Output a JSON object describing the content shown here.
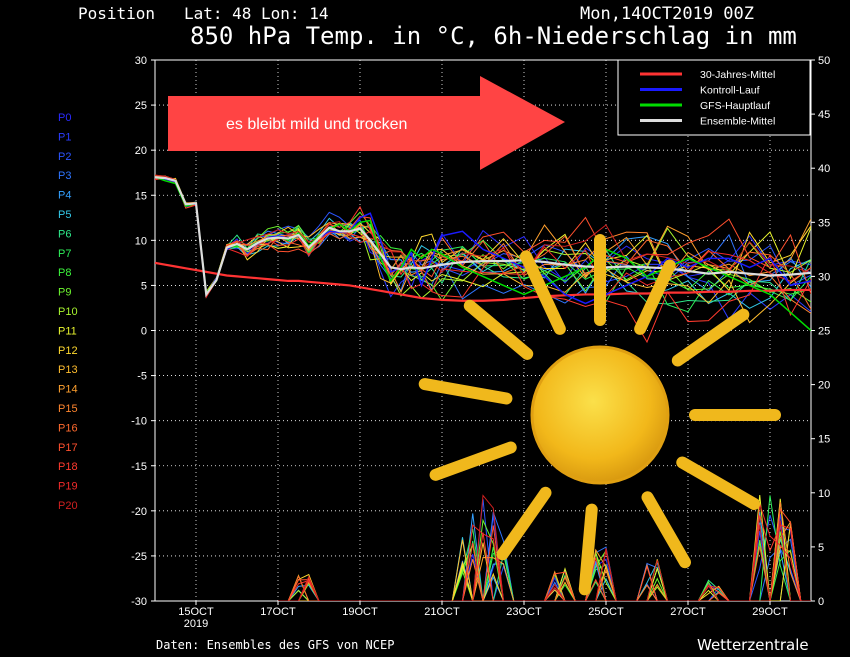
{
  "header": {
    "position": "Position   Lat: 48 Lon: 14",
    "date": "Mon,14OCT2019 00Z",
    "title": "850 hPa Temp. in °C, 6h-Niederschlag in mm"
  },
  "footer": {
    "source": "Daten: Ensembles des GFS von NCEP",
    "brand": "Wetterzentrale"
  },
  "annotation": {
    "arrow_text": "es bleibt mild und trocken",
    "arrow_color": "#ff4444",
    "decoration": "sun-icon"
  },
  "members": [
    {
      "label": "P0",
      "color": "#2b2bff"
    },
    {
      "label": "P1",
      "color": "#2b3cff"
    },
    {
      "label": "P2",
      "color": "#2c55ff"
    },
    {
      "label": "P3",
      "color": "#2f75ff"
    },
    {
      "label": "P4",
      "color": "#33a0ff"
    },
    {
      "label": "P5",
      "color": "#33c8e8"
    },
    {
      "label": "P6",
      "color": "#2ee88a"
    },
    {
      "label": "P7",
      "color": "#2ef05a"
    },
    {
      "label": "P8",
      "color": "#3cf53c"
    },
    {
      "label": "P9",
      "color": "#6cf52e"
    },
    {
      "label": "P10",
      "color": "#a8f52e"
    },
    {
      "label": "P11",
      "color": "#e8f52e"
    },
    {
      "label": "P12",
      "color": "#ffd92e"
    },
    {
      "label": "P13",
      "color": "#ffbd2e"
    },
    {
      "label": "P14",
      "color": "#ffa02e"
    },
    {
      "label": "P15",
      "color": "#ff852e"
    },
    {
      "label": "P16",
      "color": "#ff6a2e"
    },
    {
      "label": "P17",
      "color": "#ff502e"
    },
    {
      "label": "P18",
      "color": "#ff3a2e"
    },
    {
      "label": "P19",
      "color": "#f02a2a"
    },
    {
      "label": "P20",
      "color": "#d02020"
    }
  ],
  "chart_data": {
    "type": "line",
    "x_days": [
      0,
      0.25,
      0.5,
      0.75,
      1,
      1.25,
      1.5,
      1.75,
      2,
      2.25,
      2.5,
      2.75,
      3,
      3.25,
      3.5,
      3.75,
      4,
      4.25,
      4.5,
      4.75,
      5,
      5.25,
      5.5,
      5.75,
      6,
      6.25,
      6.5,
      6.75,
      7,
      7.5,
      8,
      8.5,
      9,
      9.5,
      10,
      10.5,
      11,
      11.5,
      12,
      12.5,
      13,
      13.5,
      14,
      14.5,
      15,
      15.5,
      16
    ],
    "xticks": [
      {
        "day": 1,
        "label": "15OCT",
        "sub": "2019"
      },
      {
        "day": 3,
        "label": "17OCT"
      },
      {
        "day": 5,
        "label": "19OCT"
      },
      {
        "day": 7,
        "label": "21OCT"
      },
      {
        "day": 9,
        "label": "23OCT"
      },
      {
        "day": 11,
        "label": "25OCT"
      },
      {
        "day": 13,
        "label": "27OCT"
      },
      {
        "day": 15,
        "label": "29OCT"
      }
    ],
    "xlim": [
      0,
      16
    ],
    "ylim_left": [
      -30,
      30
    ],
    "ylim_right": [
      0,
      50
    ],
    "yticks_left": [
      -30,
      -25,
      -20,
      -15,
      -10,
      -5,
      0,
      5,
      10,
      15,
      20,
      25,
      30
    ],
    "yticks_right": [
      0,
      5,
      10,
      15,
      20,
      25,
      30,
      35,
      40,
      45,
      50
    ],
    "grid": true,
    "series": [
      {
        "name": "30-Jahres-Mittel",
        "color": "#ff3333",
        "y": [
          7.5,
          7.3,
          7.1,
          6.9,
          6.7,
          6.5,
          6.3,
          6.1,
          6,
          5.9,
          5.8,
          5.7,
          5.6,
          5.5,
          5.5,
          5.4,
          5.3,
          5.2,
          5.1,
          5,
          4.8,
          4.6,
          4.4,
          4.2,
          4,
          3.8,
          3.6,
          3.5,
          3.4,
          3.3,
          3.3,
          3.4,
          3.6,
          3.8,
          3.9,
          4,
          4,
          4.1,
          4.1,
          4.2,
          4.2,
          4.3,
          4.3,
          4.4,
          4.4,
          4.5,
          4.5
        ]
      },
      {
        "name": "Kontroll-Lauf",
        "color": "#1a1aff",
        "y": [
          17,
          16.8,
          16.5,
          14,
          14,
          4,
          5.8,
          9,
          9.5,
          9,
          9.6,
          10.3,
          10.5,
          10.2,
          10.6,
          9.2,
          10.3,
          11,
          10.9,
          11,
          12.5,
          13,
          10,
          6.5,
          7,
          8.5,
          5,
          8,
          10.5,
          11,
          9,
          8,
          7,
          6,
          4,
          3,
          4,
          5,
          6,
          8,
          7,
          8,
          8,
          7,
          8,
          5,
          5.5
        ]
      },
      {
        "name": "GFS-Hauptlauf",
        "color": "#00dd00",
        "y": [
          17,
          16.6,
          16.3,
          13.8,
          14.1,
          4.2,
          5.5,
          9.2,
          9.4,
          9.1,
          9.8,
          10.1,
          10.4,
          10,
          10.8,
          9.4,
          10.5,
          11.2,
          11.8,
          11,
          12,
          12.2,
          8,
          5.5,
          7,
          9,
          8,
          9,
          8.5,
          7,
          6,
          5,
          4,
          5,
          6,
          7,
          9,
          8,
          6,
          7,
          8,
          7,
          6,
          5,
          4,
          2,
          0
        ]
      },
      {
        "name": "Ensemble-Mittel",
        "color": "#dddddd",
        "y": [
          17,
          16.9,
          16.6,
          14,
          14.1,
          4,
          5.6,
          9.2,
          9.6,
          9,
          9.7,
          10.2,
          10.3,
          10.2,
          10.6,
          9.2,
          10.3,
          11.4,
          11,
          11,
          11.3,
          10,
          8.5,
          7,
          6.8,
          7,
          6.9,
          7.1,
          7.3,
          7.6,
          7.7,
          7.7,
          7.8,
          7.6,
          7.3,
          7.1,
          7,
          7.1,
          7,
          6.9,
          6.6,
          6.3,
          6.5,
          6.3,
          6.1,
          6.2,
          6.4
        ]
      }
    ]
  }
}
